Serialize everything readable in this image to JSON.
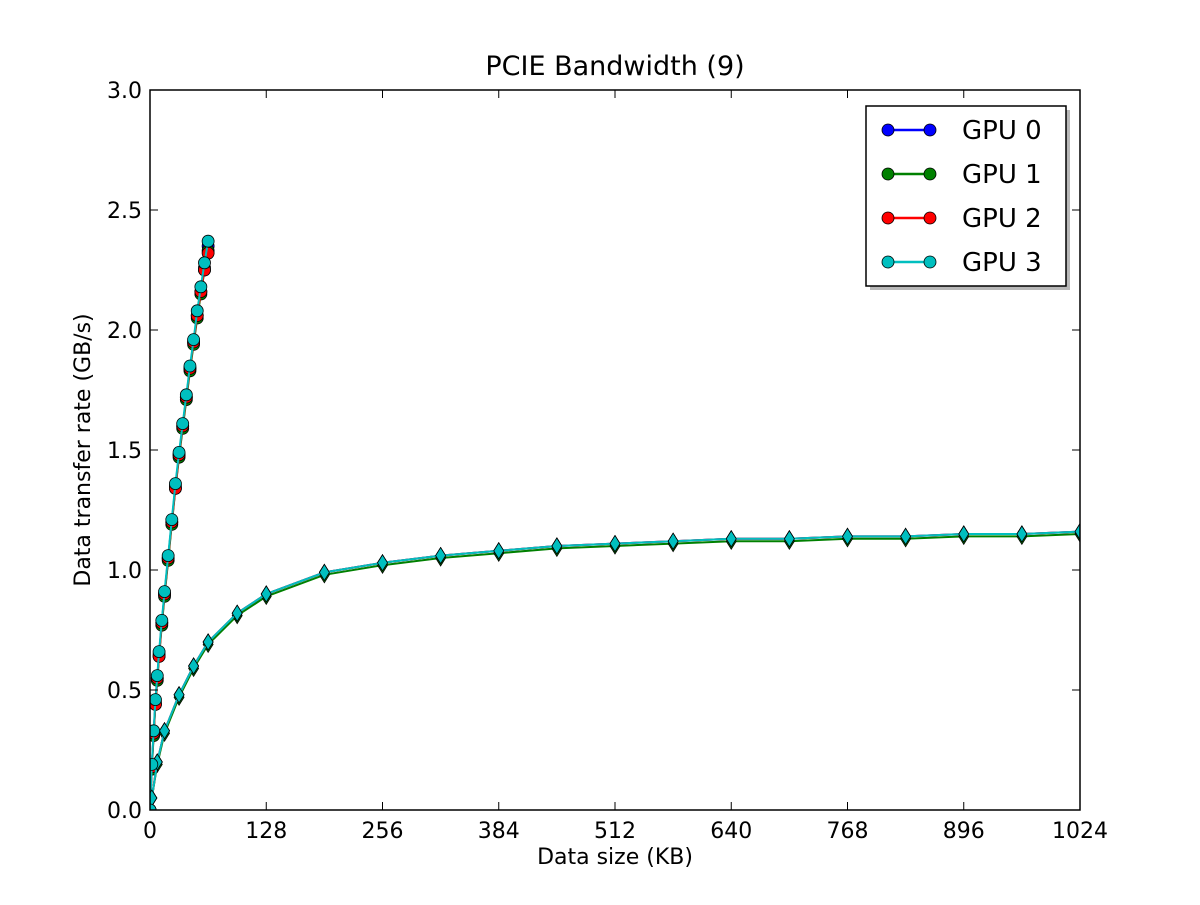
{
  "chart_data": {
    "type": "line",
    "title": "PCIE Bandwidth (9)",
    "xlabel": "Data size (KB)",
    "ylabel": "Data transfer rate (GB/s)",
    "xlim": [
      0,
      1024
    ],
    "ylim": [
      0,
      3.0
    ],
    "xticks": [
      0,
      128,
      256,
      384,
      512,
      640,
      768,
      896,
      1024
    ],
    "yticks": [
      0.0,
      0.5,
      1.0,
      1.5,
      2.0,
      2.5,
      3.0
    ],
    "xtick_labels": [
      "0",
      "128",
      "256",
      "384",
      "512",
      "640",
      "768",
      "896",
      "1024"
    ],
    "ytick_labels": [
      "0.0",
      "0.5",
      "1.0",
      "1.5",
      "2.0",
      "2.5",
      "3.0"
    ],
    "grid": false,
    "legend_position": "top-right",
    "series": [
      {
        "name": "GPU 0",
        "color": "#0000ff",
        "small_transfers": {
          "x": [
            0,
            2,
            4,
            6,
            8,
            10,
            13,
            16,
            20,
            24,
            28,
            32,
            36,
            40,
            44,
            48,
            52,
            56,
            60,
            64
          ],
          "y": [
            0.0,
            0.18,
            0.32,
            0.45,
            0.55,
            0.65,
            0.78,
            0.9,
            1.05,
            1.2,
            1.35,
            1.48,
            1.6,
            1.72,
            1.84,
            1.95,
            2.06,
            2.16,
            2.26,
            2.35
          ]
        },
        "large_transfers": {
          "x": [
            2,
            8,
            16,
            32,
            48,
            64,
            96,
            128,
            192,
            256,
            320,
            384,
            448,
            512,
            576,
            640,
            704,
            768,
            832,
            896,
            960,
            1024
          ],
          "y": [
            0.05,
            0.2,
            0.33,
            0.48,
            0.6,
            0.7,
            0.82,
            0.9,
            0.99,
            1.03,
            1.06,
            1.08,
            1.1,
            1.11,
            1.12,
            1.13,
            1.13,
            1.14,
            1.14,
            1.15,
            1.15,
            1.16
          ]
        }
      },
      {
        "name": "GPU 1",
        "color": "#008000",
        "small_transfers": {
          "x": [
            0,
            2,
            4,
            6,
            8,
            10,
            13,
            16,
            20,
            24,
            28,
            32,
            36,
            40,
            44,
            48,
            52,
            56,
            60,
            64
          ],
          "y": [
            0.0,
            0.17,
            0.31,
            0.44,
            0.54,
            0.64,
            0.77,
            0.89,
            1.04,
            1.19,
            1.34,
            1.47,
            1.59,
            1.71,
            1.83,
            1.94,
            2.05,
            2.15,
            2.25,
            2.33
          ]
        },
        "large_transfers": {
          "x": [
            2,
            8,
            16,
            32,
            48,
            64,
            96,
            128,
            192,
            256,
            320,
            384,
            448,
            512,
            576,
            640,
            704,
            768,
            832,
            896,
            960,
            1024
          ],
          "y": [
            0.05,
            0.19,
            0.32,
            0.47,
            0.59,
            0.69,
            0.81,
            0.89,
            0.98,
            1.02,
            1.05,
            1.07,
            1.09,
            1.1,
            1.11,
            1.12,
            1.12,
            1.13,
            1.13,
            1.14,
            1.14,
            1.15
          ]
        }
      },
      {
        "name": "GPU 2",
        "color": "#ff0000",
        "small_transfers": {
          "x": [
            0,
            2,
            4,
            6,
            8,
            10,
            13,
            16,
            20,
            24,
            28,
            32,
            36,
            40,
            44,
            48,
            52,
            56,
            60,
            64
          ],
          "y": [
            0.0,
            0.18,
            0.32,
            0.44,
            0.55,
            0.64,
            0.78,
            0.9,
            1.05,
            1.2,
            1.34,
            1.48,
            1.6,
            1.72,
            1.84,
            1.95,
            2.06,
            2.16,
            2.25,
            2.32
          ]
        },
        "large_transfers": {
          "x": [
            2,
            8,
            16,
            32,
            48,
            64,
            96,
            128,
            192,
            256,
            320,
            384,
            448,
            512,
            576,
            640,
            704,
            768,
            832,
            896,
            960,
            1024
          ],
          "y": [
            0.05,
            0.2,
            0.33,
            0.48,
            0.6,
            0.7,
            0.82,
            0.9,
            0.99,
            1.03,
            1.06,
            1.08,
            1.1,
            1.11,
            1.12,
            1.13,
            1.13,
            1.14,
            1.14,
            1.15,
            1.15,
            1.16
          ]
        }
      },
      {
        "name": "GPU 3",
        "color": "#00bfbf",
        "small_transfers": {
          "x": [
            0,
            2,
            4,
            6,
            8,
            10,
            13,
            16,
            20,
            24,
            28,
            32,
            36,
            40,
            44,
            48,
            52,
            56,
            60,
            64
          ],
          "y": [
            0.0,
            0.19,
            0.33,
            0.46,
            0.56,
            0.66,
            0.79,
            0.91,
            1.06,
            1.21,
            1.36,
            1.49,
            1.61,
            1.73,
            1.85,
            1.96,
            2.08,
            2.18,
            2.28,
            2.37
          ]
        },
        "large_transfers": {
          "x": [
            2,
            8,
            16,
            32,
            48,
            64,
            96,
            128,
            192,
            256,
            320,
            384,
            448,
            512,
            576,
            640,
            704,
            768,
            832,
            896,
            960,
            1024
          ],
          "y": [
            0.05,
            0.2,
            0.33,
            0.48,
            0.6,
            0.7,
            0.82,
            0.9,
            0.99,
            1.03,
            1.06,
            1.08,
            1.1,
            1.11,
            1.12,
            1.13,
            1.13,
            1.14,
            1.14,
            1.15,
            1.15,
            1.16
          ]
        }
      }
    ]
  }
}
